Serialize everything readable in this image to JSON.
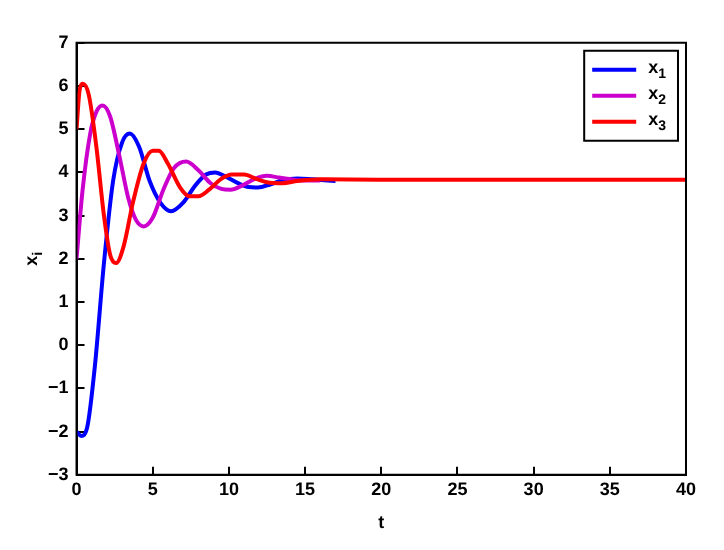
{
  "chart_data": {
    "type": "line",
    "xlabel": "t",
    "ylabel": "x$_{i}$",
    "xlim": [
      0,
      40
    ],
    "ylim": [
      -3,
      7
    ],
    "xticks": [
      0,
      5,
      10,
      15,
      20,
      25,
      30,
      35,
      40
    ],
    "yticks": [
      -3,
      -2,
      -1,
      0,
      1,
      2,
      3,
      4,
      5,
      6,
      7
    ],
    "legend": "top right",
    "marker": "none",
    "line_style": "solid",
    "grid": false,
    "series": [
      {
        "name": "x$_{1}$",
        "color": "#0000ff",
        "x": [
          0,
          0.3,
          0.7,
          1.2,
          1.8,
          2.4,
          3.0,
          3.5,
          4.1,
          4.8,
          5.5,
          6.2,
          7.0,
          7.8,
          8.5,
          9.1,
          9.8,
          10.6,
          11.3,
          11.9,
          12.7,
          13.5,
          14.5,
          15.5,
          17
        ],
        "values": [
          -2.0,
          -2.1,
          -1.9,
          -0.5,
          1.9,
          3.8,
          4.7,
          4.9,
          4.6,
          3.8,
          3.3,
          3.1,
          3.3,
          3.7,
          3.95,
          4.0,
          3.9,
          3.75,
          3.66,
          3.65,
          3.72,
          3.82,
          3.86,
          3.84,
          3.8
        ]
      },
      {
        "name": "x$_{2}$",
        "color": "#cc00cc",
        "x": [
          0,
          0.4,
          0.9,
          1.3,
          1.7,
          2.2,
          2.8,
          3.4,
          3.9,
          4.4,
          5.0,
          5.7,
          6.4,
          7.2,
          8.0,
          8.8,
          9.5,
          10.1,
          10.9,
          11.7,
          12.5,
          13.3,
          14.5,
          16
        ],
        "values": [
          2.0,
          3.6,
          4.9,
          5.4,
          5.55,
          5.3,
          4.4,
          3.4,
          2.9,
          2.75,
          2.95,
          3.6,
          4.1,
          4.25,
          4.05,
          3.75,
          3.62,
          3.6,
          3.7,
          3.85,
          3.92,
          3.88,
          3.82,
          3.81
        ]
      },
      {
        "name": "x$_{3}$",
        "color": "#ff0000",
        "x": [
          0,
          0.2,
          0.4,
          0.8,
          1.3,
          1.8,
          2.2,
          2.6,
          3.1,
          3.7,
          4.4,
          5.0,
          5.4,
          6.0,
          6.8,
          7.4,
          8.0,
          8.7,
          9.5,
          10.2,
          11.0,
          11.8,
          12.7,
          13.5,
          14.5,
          16,
          20,
          25,
          30,
          35,
          40
        ],
        "values": [
          5.0,
          5.9,
          6.05,
          5.8,
          4.6,
          3.0,
          2.1,
          1.9,
          2.3,
          3.3,
          4.2,
          4.5,
          4.5,
          4.2,
          3.65,
          3.45,
          3.45,
          3.6,
          3.85,
          3.95,
          3.95,
          3.85,
          3.76,
          3.75,
          3.8,
          3.84,
          3.83,
          3.83,
          3.83,
          3.83,
          3.83
        ]
      }
    ]
  }
}
